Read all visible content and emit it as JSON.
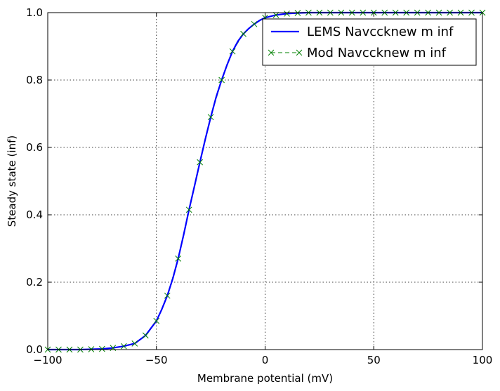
{
  "chart_data": {
    "type": "line",
    "title": "",
    "xlabel": "Membrane potential (mV)",
    "ylabel": "Steady state (inf)",
    "xlim": [
      -100,
      100
    ],
    "ylim": [
      0.0,
      1.0
    ],
    "xticks": [
      -100,
      -50,
      0,
      50,
      100
    ],
    "xtick_labels": [
      "−100",
      "−50",
      "0",
      "50",
      "100"
    ],
    "yticks": [
      0.0,
      0.2,
      0.4,
      0.6,
      0.8,
      1.0
    ],
    "ytick_labels": [
      "0.0",
      "0.2",
      "0.4",
      "0.6",
      "0.8",
      "1.0"
    ],
    "grid": true,
    "legend_position": "top-right",
    "series": [
      {
        "name": "LEMS Navccknew m inf",
        "style": "solid-line",
        "color": "#0000ff",
        "x": [
          -100,
          -95,
          -90,
          -85,
          -80,
          -75,
          -70,
          -65,
          -60,
          -55,
          -50,
          -47.5,
          -45,
          -42.5,
          -40,
          -37.5,
          -35,
          -32.5,
          -30,
          -27.5,
          -25,
          -22.5,
          -20,
          -17.5,
          -15,
          -12.5,
          -10,
          -7.5,
          -5,
          -2.5,
          0,
          5,
          10,
          15,
          20,
          30,
          40,
          50,
          60,
          70,
          80,
          90,
          100
        ],
        "y": [
          0.0,
          0.0,
          0.0,
          0.0,
          0.001,
          0.002,
          0.005,
          0.01,
          0.018,
          0.042,
          0.085,
          0.12,
          0.16,
          0.21,
          0.27,
          0.34,
          0.415,
          0.485,
          0.556,
          0.625,
          0.69,
          0.75,
          0.8,
          0.845,
          0.885,
          0.915,
          0.937,
          0.953,
          0.966,
          0.977,
          0.985,
          0.993,
          0.997,
          0.999,
          1.0,
          1.0,
          1.0,
          1.0,
          1.0,
          1.0,
          1.0,
          1.0,
          1.0
        ]
      },
      {
        "name": "Mod Navccknew m inf",
        "style": "dashed-line-x-markers",
        "color": "#008000",
        "x": [
          -100,
          -95,
          -90,
          -85,
          -80,
          -75,
          -70,
          -65,
          -60,
          -55,
          -50,
          -45,
          -40,
          -35,
          -30,
          -25,
          -20,
          -15,
          -10,
          -5,
          0,
          5,
          10,
          15,
          20,
          25,
          30,
          35,
          40,
          45,
          50,
          55,
          60,
          65,
          70,
          75,
          80,
          85,
          90,
          95,
          100
        ],
        "y": [
          0.0,
          0.0,
          0.0,
          0.0,
          0.001,
          0.002,
          0.005,
          0.01,
          0.018,
          0.042,
          0.085,
          0.16,
          0.27,
          0.415,
          0.556,
          0.69,
          0.8,
          0.885,
          0.937,
          0.966,
          0.985,
          0.993,
          0.997,
          0.999,
          1.0,
          1.0,
          1.0,
          1.0,
          1.0,
          1.0,
          1.0,
          1.0,
          1.0,
          1.0,
          1.0,
          1.0,
          1.0,
          1.0,
          1.0,
          1.0,
          1.0
        ]
      }
    ]
  }
}
